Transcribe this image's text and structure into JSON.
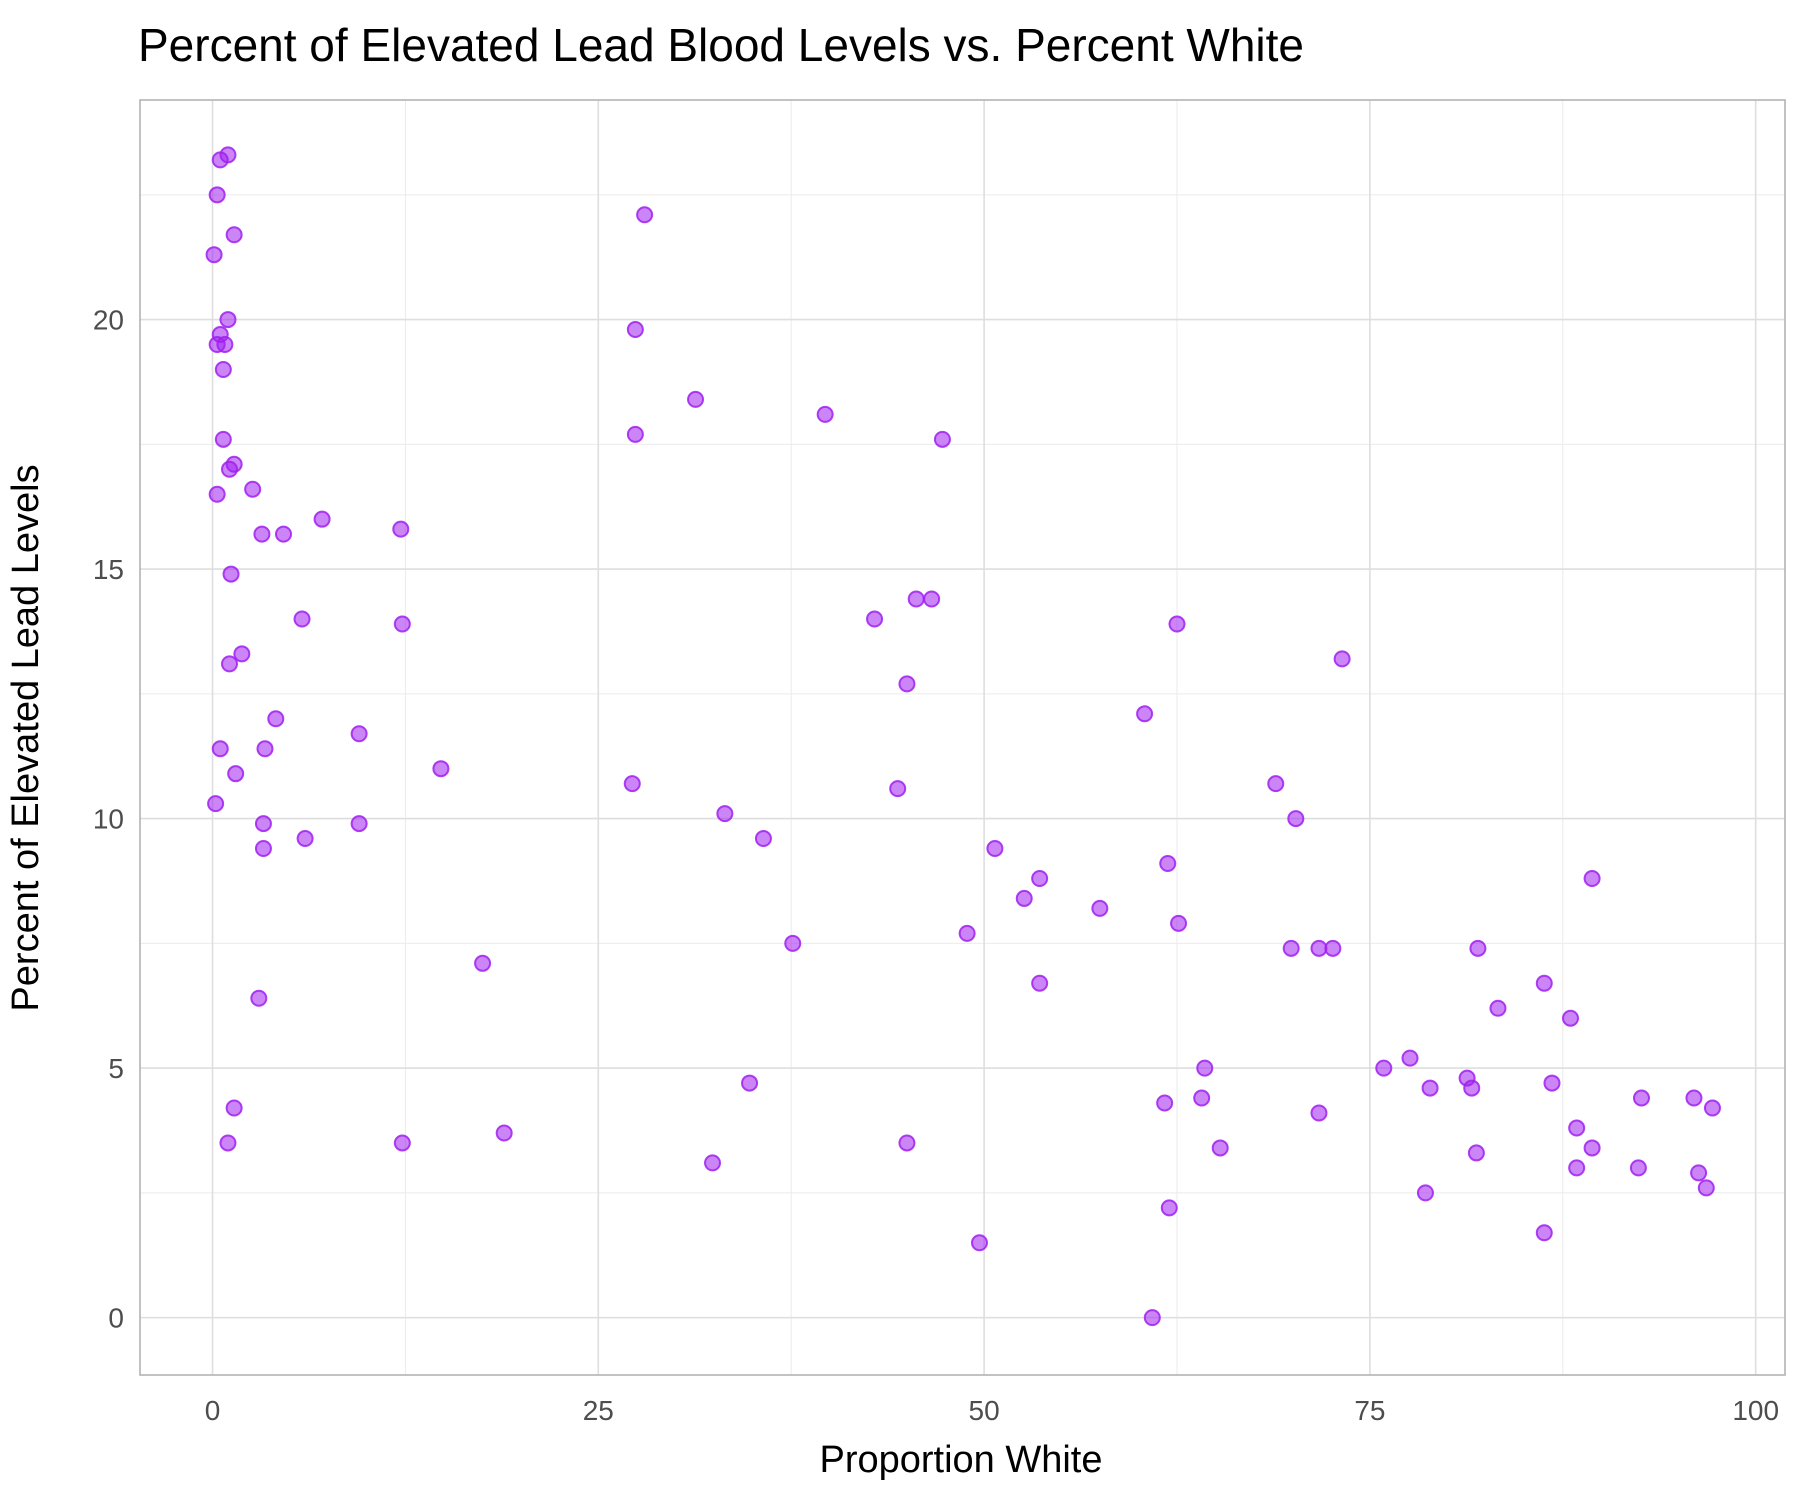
{
  "chart_data": {
    "type": "scatter",
    "title": "Percent of Elevated Lead Blood Levels vs. Percent White",
    "xlabel": "Proportion White",
    "ylabel": "Percent of Elevated Lead Levels",
    "xlim": [
      -4.7,
      101.9
    ],
    "ylim": [
      -1.15,
      24.4
    ],
    "xticks": [
      0,
      25,
      50,
      75,
      100
    ],
    "yticks": [
      0,
      5,
      10,
      15,
      20
    ],
    "grid": true,
    "legend": "none",
    "point_color": "#a020f0",
    "x": [
      1.0,
      0.5,
      0.3,
      1.4,
      0.1,
      1.0,
      0.5,
      0.3,
      0.8,
      0.7,
      0.7,
      1.4,
      1.1,
      0.3,
      1.2,
      1.1,
      1.9,
      0.5,
      1.5,
      0.2,
      1.4,
      1.0,
      2.6,
      3.2,
      4.6,
      7.1,
      5.8,
      4.1,
      3.4,
      3.3,
      3.3,
      6.0,
      3.0,
      9.5,
      9.5,
      12.2,
      12.3,
      12.3,
      14.8,
      17.5,
      18.9,
      27.4,
      27.4,
      28.0,
      31.3,
      27.2,
      33.2,
      35.7,
      37.6,
      34.8,
      32.4,
      39.7,
      42.9,
      45.6,
      46.6,
      47.3,
      45.0,
      44.4,
      45.0,
      48.9,
      50.7,
      52.6,
      53.6,
      53.6,
      49.7,
      57.5,
      60.4,
      62.5,
      62.6,
      61.9,
      61.7,
      62.0,
      64.3,
      64.1,
      65.3,
      60.9,
      68.9,
      70.2,
      69.9,
      71.7,
      72.6,
      71.7,
      73.2,
      75.9,
      77.6,
      78.9,
      78.6,
      81.3,
      81.6,
      82.0,
      81.9,
      83.3,
      86.3,
      86.8,
      86.3,
      88.0,
      88.4,
      88.4,
      89.4,
      89.4,
      92.6,
      92.4,
      96.0,
      96.3,
      96.8,
      97.2
    ],
    "y": [
      23.3,
      23.2,
      22.5,
      21.7,
      21.3,
      20.0,
      19.7,
      19.5,
      19.5,
      19.0,
      17.6,
      17.1,
      17.0,
      16.5,
      14.9,
      13.1,
      13.3,
      11.4,
      10.9,
      10.3,
      4.2,
      3.5,
      16.6,
      15.7,
      15.7,
      16.0,
      14.0,
      12.0,
      11.4,
      9.9,
      9.4,
      9.6,
      6.4,
      11.7,
      9.9,
      15.8,
      13.9,
      3.5,
      11.0,
      7.1,
      3.7,
      19.8,
      17.7,
      22.1,
      18.4,
      10.7,
      10.1,
      9.6,
      7.5,
      4.7,
      3.1,
      18.1,
      14.0,
      14.4,
      14.4,
      17.6,
      12.7,
      10.6,
      3.5,
      7.7,
      9.4,
      8.4,
      8.8,
      6.7,
      1.5,
      8.2,
      12.1,
      13.9,
      7.9,
      9.1,
      4.3,
      2.2,
      5.0,
      4.4,
      3.4,
      0.0,
      10.7,
      10.0,
      7.4,
      7.4,
      7.4,
      4.1,
      13.2,
      5.0,
      5.2,
      4.6,
      2.5,
      4.8,
      4.6,
      7.4,
      3.3,
      6.2,
      6.7,
      4.7,
      1.7,
      6.0,
      3.8,
      3.0,
      8.8,
      3.4,
      4.4,
      3.0,
      4.4,
      2.9,
      2.6,
      4.2
    ]
  }
}
